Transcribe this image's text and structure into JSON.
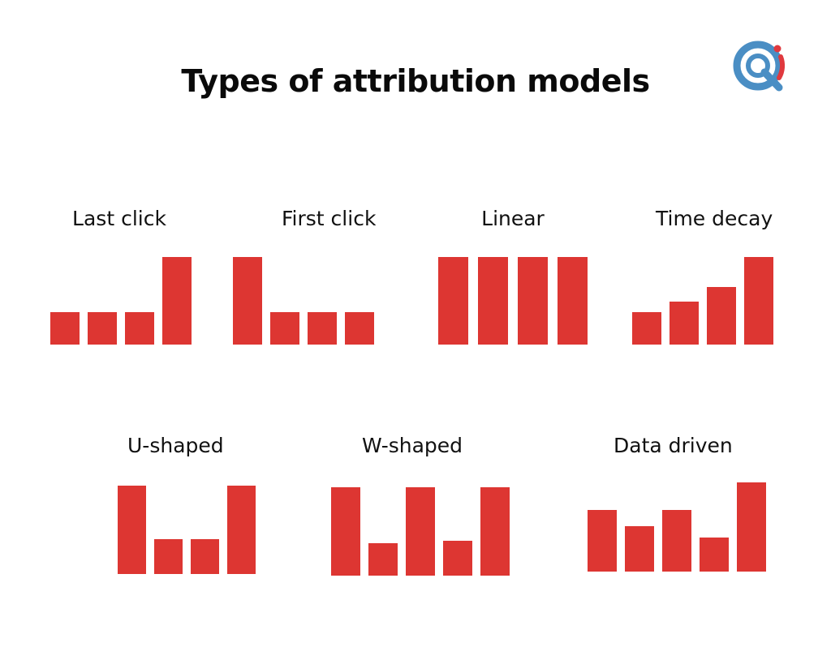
{
  "title": "Types of attribution models",
  "colors": {
    "bar": "#dd3632",
    "logo_blue": "#4a8ec4",
    "logo_red": "#e0393e"
  },
  "logo": {
    "name": "magnifier-logo-icon"
  },
  "models": [
    {
      "label": "Last click",
      "values": [
        0.37,
        0.37,
        0.37,
        1.0
      ]
    },
    {
      "label": "First click",
      "values": [
        1.0,
        0.37,
        0.37,
        0.37
      ]
    },
    {
      "label": "Linear",
      "values": [
        1.0,
        1.0,
        1.0,
        1.0
      ]
    },
    {
      "label": "Time decay",
      "values": [
        0.37,
        0.49,
        0.66,
        1.0
      ]
    },
    {
      "label": "U-shaped",
      "values": [
        1.0,
        0.39,
        0.39,
        1.0
      ]
    },
    {
      "label": "W-shaped",
      "values": [
        1.0,
        0.37,
        1.0,
        0.39,
        1.0
      ]
    },
    {
      "label": "Data driven",
      "values": [
        0.69,
        0.51,
        0.69,
        0.38,
        1.0
      ]
    }
  ]
}
